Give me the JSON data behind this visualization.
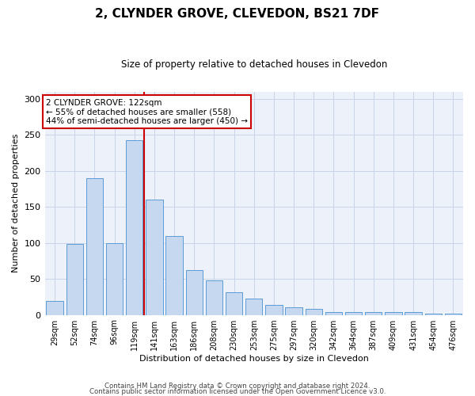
{
  "title": "2, CLYNDER GROVE, CLEVEDON, BS21 7DF",
  "subtitle": "Size of property relative to detached houses in Clevedon",
  "xlabel": "Distribution of detached houses by size in Clevedon",
  "ylabel": "Number of detached properties",
  "categories": [
    "29sqm",
    "52sqm",
    "74sqm",
    "96sqm",
    "119sqm",
    "141sqm",
    "163sqm",
    "186sqm",
    "208sqm",
    "230sqm",
    "253sqm",
    "275sqm",
    "297sqm",
    "320sqm",
    "342sqm",
    "364sqm",
    "387sqm",
    "409sqm",
    "431sqm",
    "454sqm",
    "476sqm"
  ],
  "values": [
    19,
    98,
    190,
    100,
    242,
    160,
    110,
    62,
    48,
    31,
    23,
    14,
    10,
    8,
    4,
    4,
    4,
    4,
    4,
    2,
    2
  ],
  "bar_color": "#c5d8f0",
  "bar_edge_color": "#5b9bd5",
  "vline_x_index": 4,
  "vline_color": "#cc0000",
  "annotation_text": "2 CLYNDER GROVE: 122sqm\n← 55% of detached houses are smaller (558)\n44% of semi-detached houses are larger (450) →",
  "annotation_box_color": "#ffffff",
  "annotation_box_edge": "#cc0000",
  "ylim": [
    0,
    310
  ],
  "yticks": [
    0,
    50,
    100,
    150,
    200,
    250,
    300
  ],
  "grid_color": "#c8d4e8",
  "background_color": "#edf2fa",
  "footnote1": "Contains HM Land Registry data © Crown copyright and database right 2024.",
  "footnote2": "Contains public sector information licensed under the Open Government Licence v3.0."
}
